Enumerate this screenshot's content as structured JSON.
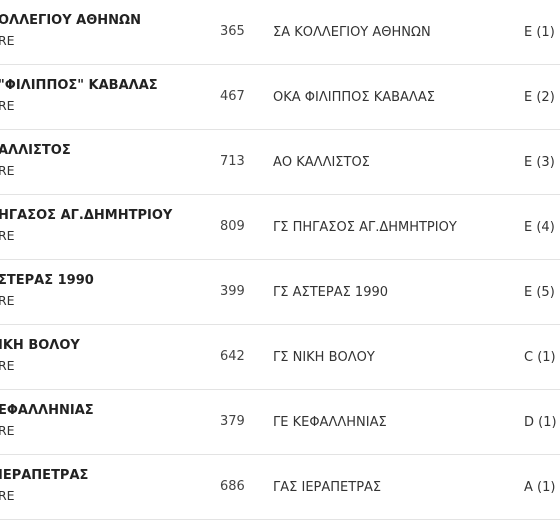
{
  "rows": [
    {
      "team": "ΟΛΛΕΓΙΟΥ ΑΘΗΝΩΝ",
      "sub": "RE",
      "number": "365",
      "club": "ΣΑ ΚΟΛΛΕΓΙΟΥ ΑΘΗΝΩΝ",
      "category": "E  (1)"
    },
    {
      "team": "\"ΦΙΛΙΠΠΟΣ\" ΚΑΒΑΛΑΣ",
      "sub": "RE",
      "number": "467",
      "club": "ΟΚΑ ΦΙΛΙΠΠΟΣ ΚΑΒΑΛΑΣ",
      "category": "E  (2)"
    },
    {
      "team": "ΑΛΛΙΣΤΟΣ",
      "sub": "RE",
      "number": "713",
      "club": "ΑΟ ΚΑΛΛΙΣΤΟΣ",
      "category": "E  (3)"
    },
    {
      "team": "ΗΓΑΣΟΣ ΑΓ.ΔΗΜΗΤΡΙΟΥ",
      "sub": "RE",
      "number": "809",
      "club": "ΓΣ ΠΗΓΑΣΟΣ ΑΓ.ΔΗΜΗΤΡΙΟΥ",
      "category": "E  (4)"
    },
    {
      "team": "ΣΤΕΡΑΣ 1990",
      "sub": "RE",
      "number": "399",
      "club": "ΓΣ ΑΣΤΕΡΑΣ 1990",
      "category": "E  (5)"
    },
    {
      "team": "ΙΚΗ ΒΟΛΟΥ",
      "sub": "RE",
      "number": "642",
      "club": "ΓΣ ΝΙΚΗ ΒΟΛΟΥ",
      "category": "C  (1)"
    },
    {
      "team": "ΕΦΑΛΛΗΝΙΑΣ",
      "sub": "RE",
      "number": "379",
      "club": "ΓΕ ΚΕΦΑΛΛΗΝΙΑΣ",
      "category": "D  (1)"
    },
    {
      "team": "ΙΕΡΑΠΕΤΡΑΣ",
      "sub": "RE",
      "number": "686",
      "club": "ΓΑΣ ΙΕΡΑΠΕΤΡΑΣ",
      "category": "A  (1)"
    }
  ]
}
